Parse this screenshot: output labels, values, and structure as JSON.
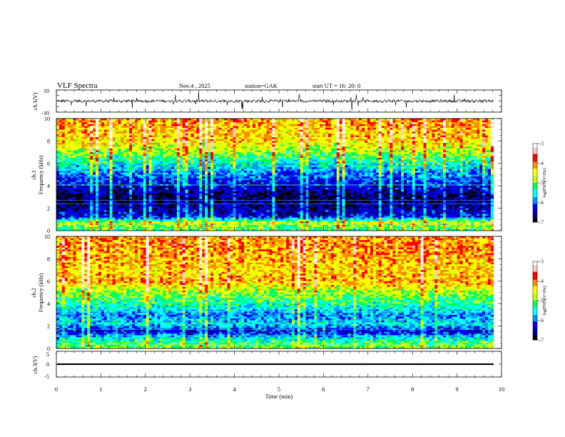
{
  "header": {
    "title": "VLF  Spectra",
    "date": "Nov.4  , 2025",
    "station": "station=GAK",
    "start_ut": "start  UT  =    16: 20: 0"
  },
  "colors": {
    "ink": "#000000",
    "scale": [
      "#000000",
      "#00008c",
      "#0000ff",
      "#0096ff",
      "#00ffff",
      "#00ff64",
      "#c8ff00",
      "#ffff00",
      "#ff8c00",
      "#ff0000",
      "#ffc8c8",
      "#ffffff"
    ]
  },
  "chart_data": [
    {
      "id": "ch1-waveform",
      "type": "line",
      "ylabel": "ch.1(V)",
      "ylim": [
        -10,
        10
      ],
      "yticks": [
        "10",
        "-10"
      ],
      "baseline_V": 0,
      "description_of_trace": "noisy baseline near 0 V with sparse spikes"
    },
    {
      "id": "ch1-spectrogram",
      "type": "heatmap",
      "ylabel": "ch.1\nFrequency  (kHz)",
      "ylabel_lines": [
        "ch.1",
        "Frequency  (kHz)"
      ],
      "ylim": [
        0,
        10
      ],
      "yticks": [
        "0",
        "2",
        "4",
        "6",
        "8",
        "10"
      ],
      "colorbar": {
        "label": "log(PSD)(V²/Hz)",
        "range": [
          -7,
          -3
        ],
        "ticks": [
          "-3",
          "-4",
          "-5",
          "-6",
          "-7"
        ]
      },
      "band_profile": [
        {
          "f_kHz": 0.2,
          "level": -5.2
        },
        {
          "f_kHz": 0.7,
          "level": -4.6
        },
        {
          "f_kHz": 1.2,
          "level": -6.3
        },
        {
          "f_kHz": 2.0,
          "level": -6.6
        },
        {
          "f_kHz": 3.0,
          "level": -6.8
        },
        {
          "f_kHz": 4.0,
          "level": -6.4
        },
        {
          "f_kHz": 5.0,
          "level": -6.0
        },
        {
          "f_kHz": 6.0,
          "level": -5.5
        },
        {
          "f_kHz": 7.0,
          "level": -4.9
        },
        {
          "f_kHz": 8.0,
          "level": -4.4
        },
        {
          "f_kHz": 9.0,
          "level": -4.3
        },
        {
          "f_kHz": 10.0,
          "level": -4.2
        }
      ]
    },
    {
      "id": "ch2-spectrogram",
      "type": "heatmap",
      "ylabel": "ch.2\nFrequency  (kHz)",
      "ylabel_lines": [
        "ch.2",
        "Frequency  (kHz)"
      ],
      "ylim": [
        0,
        10
      ],
      "yticks": [
        "0",
        "2",
        "4",
        "6",
        "8",
        "10"
      ],
      "colorbar": {
        "label": "log(PSD)(V²/Hz)",
        "range": [
          -7,
          -3
        ],
        "ticks": [
          "-3",
          "-4",
          "-5",
          "-6",
          "-7"
        ]
      },
      "band_profile": [
        {
          "f_kHz": 0.2,
          "level": -5.0
        },
        {
          "f_kHz": 0.8,
          "level": -5.4
        },
        {
          "f_kHz": 1.5,
          "level": -6.4
        },
        {
          "f_kHz": 2.2,
          "level": -5.6
        },
        {
          "f_kHz": 3.0,
          "level": -6.0
        },
        {
          "f_kHz": 4.0,
          "level": -5.3
        },
        {
          "f_kHz": 5.0,
          "level": -4.9
        },
        {
          "f_kHz": 6.0,
          "level": -4.2
        },
        {
          "f_kHz": 7.0,
          "level": -4.4
        },
        {
          "f_kHz": 8.0,
          "level": -4.2
        },
        {
          "f_kHz": 9.0,
          "level": -4.1
        },
        {
          "f_kHz": 10.0,
          "level": -4.1
        }
      ]
    },
    {
      "id": "ch3-waveform",
      "type": "line",
      "ylabel": "ch.3(V)",
      "ylim": [
        -5,
        5
      ],
      "yticks": [
        "5",
        "0",
        "-5"
      ],
      "baseline_V": 0,
      "description_of_trace": "flat dense oscillation at 0 V"
    }
  ],
  "time_axis": {
    "xlabel": "Time  (min)",
    "xlim": [
      0,
      10
    ],
    "xticks": [
      "0",
      "1",
      "2",
      "3",
      "4",
      "5",
      "6",
      "7",
      "8",
      "9",
      "10"
    ],
    "data_end_min": 9.82
  }
}
